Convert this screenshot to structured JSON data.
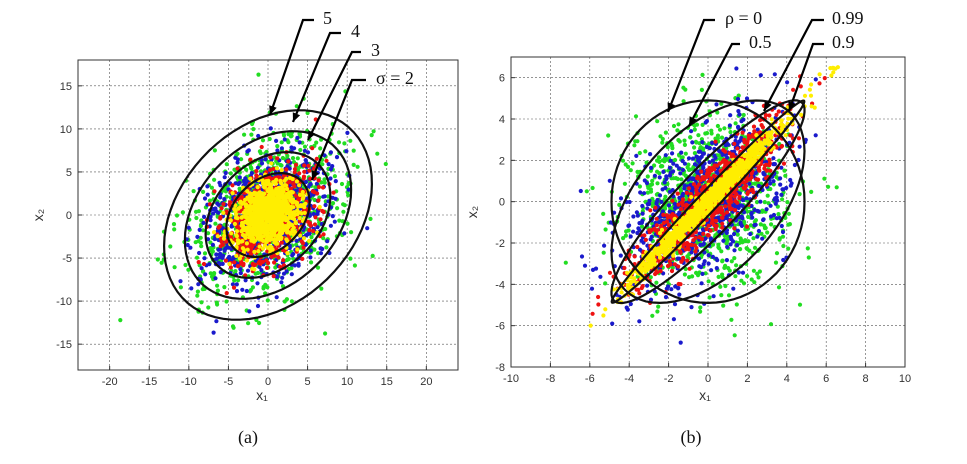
{
  "chart_data": [
    {
      "type": "scatter",
      "panel_caption": "(a)",
      "xlabel": "x₁",
      "ylabel": "x₂",
      "xlim": [
        -24,
        24
      ],
      "ylim": [
        -18,
        18
      ],
      "xticks": [
        -20,
        -15,
        -10,
        -5,
        0,
        5,
        10,
        15,
        20
      ],
      "yticks": [
        -15,
        -10,
        -5,
        0,
        5,
        10,
        15
      ],
      "grid": true,
      "series_colors": [
        "#22dd22",
        "#1a1acc",
        "#ee1111",
        "#ffee00"
      ],
      "contours": [
        {
          "label": "5",
          "center": [
            0,
            0
          ],
          "semi_major": 14.5,
          "semi_minor": 10.5,
          "angle_deg": 38
        },
        {
          "label": "4",
          "center": [
            0,
            0
          ],
          "semi_major": 11.6,
          "semi_minor": 8.4,
          "angle_deg": 38
        },
        {
          "label": "3",
          "center": [
            0,
            0
          ],
          "semi_major": 8.7,
          "semi_minor": 6.3,
          "angle_deg": 38
        },
        {
          "label": "σ = 2",
          "center": [
            0,
            0
          ],
          "semi_major": 5.8,
          "semi_minor": 4.2,
          "angle_deg": 38
        }
      ],
      "annotations": [
        "5",
        "4",
        "3",
        "σ = 2"
      ]
    },
    {
      "type": "scatter",
      "panel_caption": "(b)",
      "xlabel": "x₁",
      "ylabel": "x₂",
      "xlim": [
        -10,
        10
      ],
      "ylim": [
        -8,
        7
      ],
      "xticks": [
        -10,
        -8,
        -6,
        -4,
        -2,
        0,
        2,
        4,
        6,
        8,
        10
      ],
      "yticks": [
        -8,
        -6,
        -4,
        -2,
        0,
        2,
        4,
        6
      ],
      "grid": true,
      "series_colors": [
        "#22dd22",
        "#1a1acc",
        "#ee1111",
        "#ffee00"
      ],
      "contours": [
        {
          "label": "ρ = 0",
          "rho": 0,
          "center": [
            0,
            0
          ],
          "semi_major": 4.9,
          "semi_minor": 4.9,
          "angle_deg": 45
        },
        {
          "label": "0.5",
          "rho": 0.5,
          "center": [
            0,
            0
          ],
          "semi_major": 6.0,
          "semi_minor": 3.46,
          "angle_deg": 45
        },
        {
          "label": "0.9",
          "rho": 0.9,
          "center": [
            0,
            0
          ],
          "semi_major": 6.76,
          "semi_minor": 1.55,
          "angle_deg": 45
        },
        {
          "label": "0.99",
          "rho": 0.99,
          "center": [
            0,
            0
          ],
          "semi_major": 6.9,
          "semi_minor": 0.49,
          "angle_deg": 45
        }
      ],
      "annotations": [
        "ρ = 0",
        "0.5",
        "0.99",
        "0.9"
      ]
    }
  ]
}
